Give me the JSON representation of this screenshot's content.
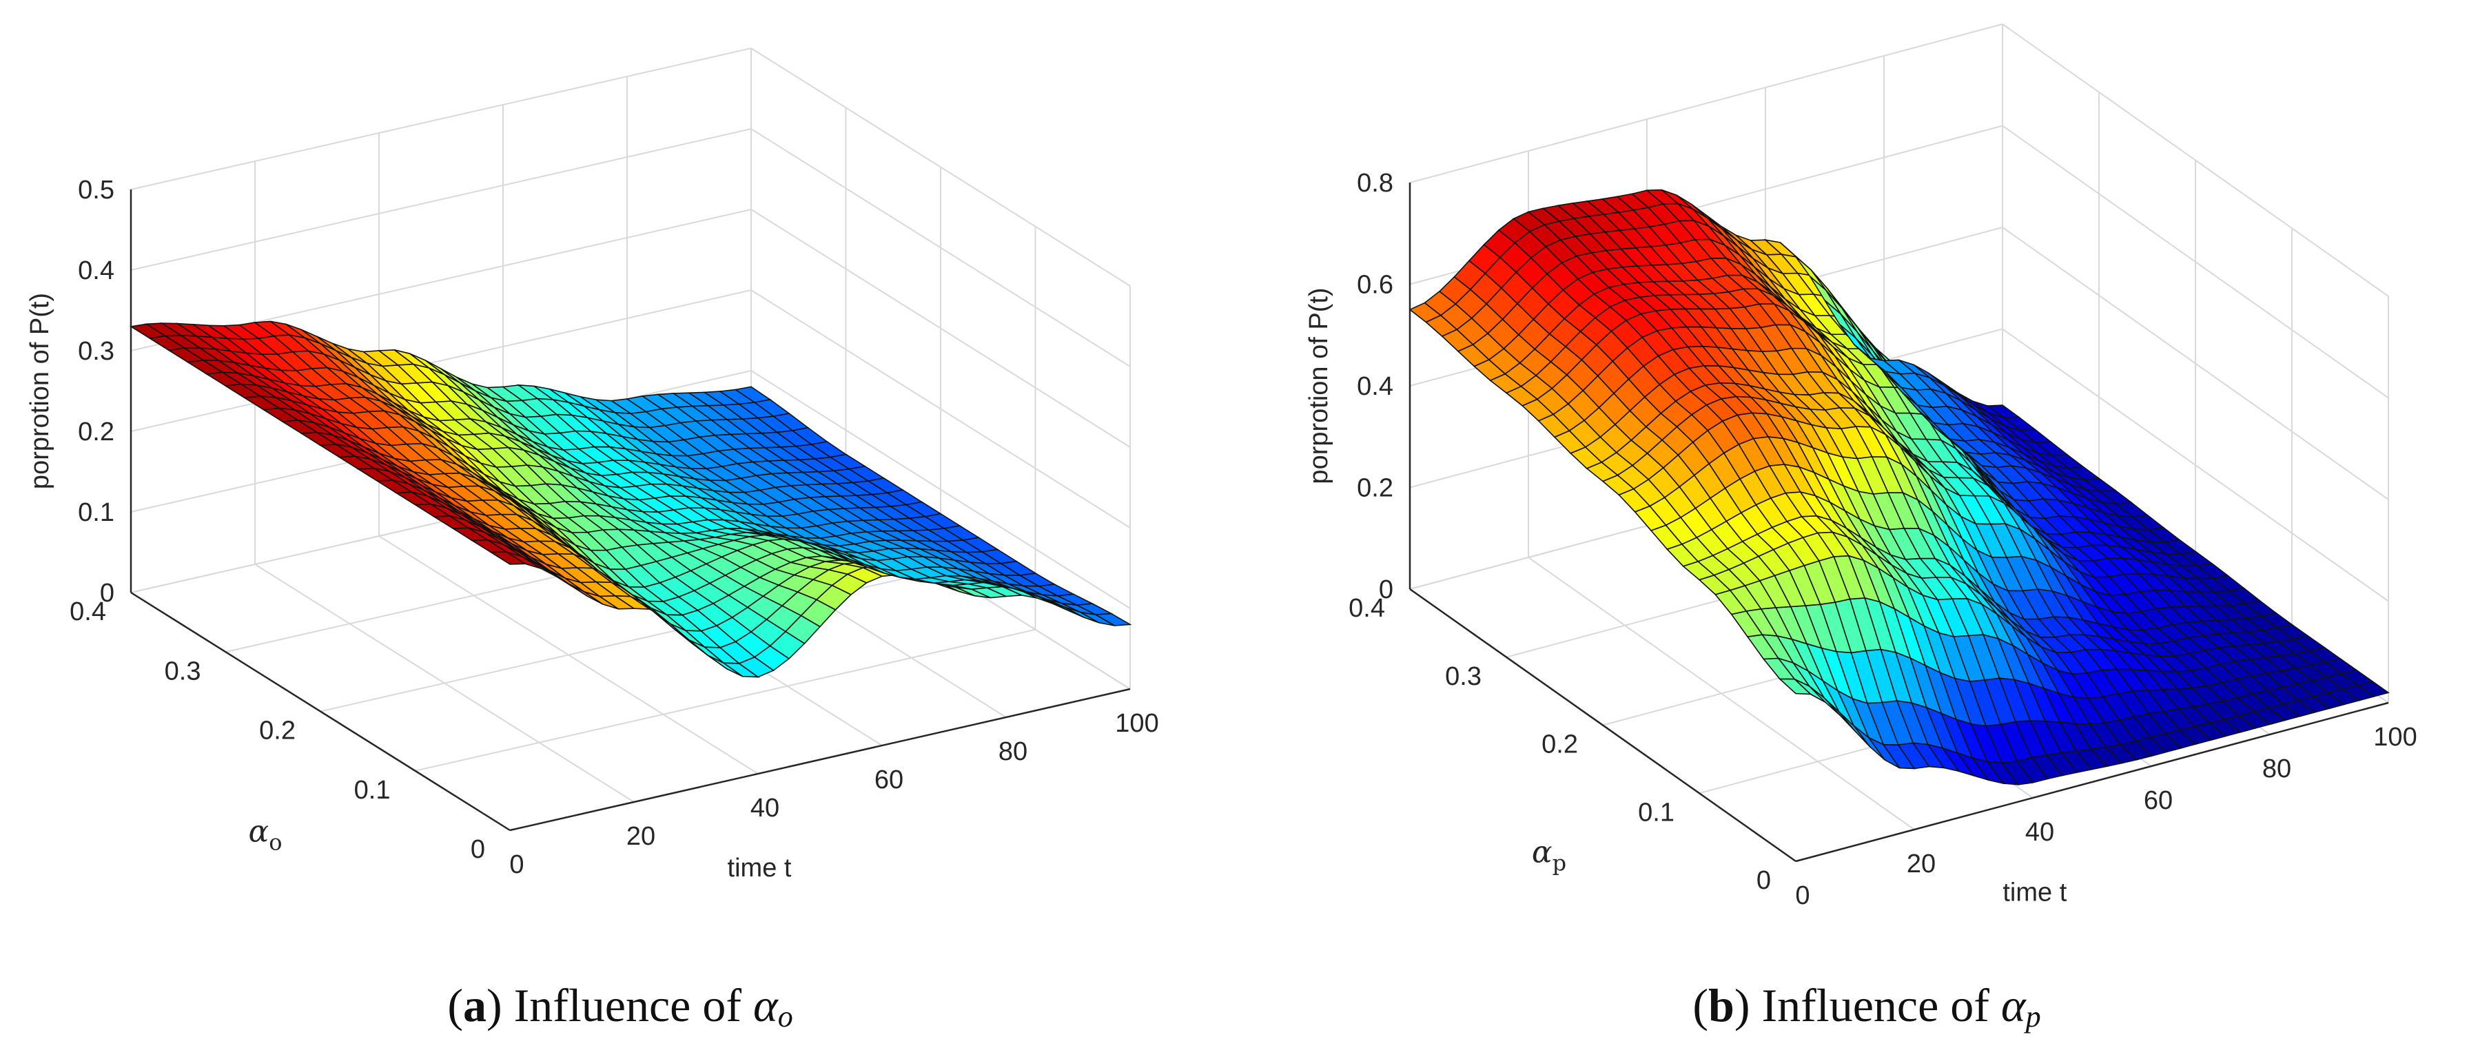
{
  "chart_data": [
    {
      "type": "surface3d",
      "panel": "a",
      "caption": {
        "prefix": "(",
        "letter": "a",
        "suffix": ") Influence of ",
        "symbol": "α",
        "subscript": "o"
      },
      "zlabel": "porprotion of P(t)",
      "xlabel": "time t",
      "ylabel": {
        "symbol": "α",
        "subscript": "o"
      },
      "xlim": [
        0,
        100
      ],
      "ylim": [
        0,
        0.4
      ],
      "zlim": [
        0,
        0.5
      ],
      "xticks": [
        "0",
        "20",
        "40",
        "60",
        "80",
        "100"
      ],
      "yticks": [
        "0",
        "0.1",
        "0.2",
        "0.3",
        "0.4"
      ],
      "zticks": [
        "0",
        "0.1",
        "0.2",
        "0.3",
        "0.4",
        "0.5"
      ],
      "grid": true,
      "colormap": "jet",
      "surface_description": "P(t) starts ~0.33 at t=0 for all alpha_o; for high alpha_o it decays to ~0.08 by t=100, for low alpha_o it dips near t=40 then rises to ~0.21 near t=65 before decaying",
      "sample_values": {
        "t": [
          0,
          20,
          40,
          60,
          80,
          100
        ],
        "alpha": [
          0,
          0.1,
          0.2,
          0.3,
          0.4
        ],
        "P": [
          [
            0.33,
            0.24,
            0.12,
            0.21,
            0.15,
            0.08
          ],
          [
            0.33,
            0.25,
            0.14,
            0.17,
            0.11,
            0.07
          ],
          [
            0.33,
            0.26,
            0.17,
            0.13,
            0.09,
            0.07
          ],
          [
            0.33,
            0.28,
            0.2,
            0.13,
            0.09,
            0.07
          ],
          [
            0.33,
            0.3,
            0.23,
            0.15,
            0.1,
            0.08
          ]
        ]
      }
    },
    {
      "type": "surface3d",
      "panel": "b",
      "caption": {
        "prefix": "(",
        "letter": "b",
        "suffix": ") Influence of ",
        "symbol": "α",
        "subscript": "p"
      },
      "zlabel": "porprotion of P(t)",
      "xlabel": "time t",
      "ylabel": {
        "symbol": "α",
        "subscript": "p"
      },
      "xlim": [
        0,
        100
      ],
      "ylim": [
        0,
        0.4
      ],
      "zlim": [
        0,
        0.8
      ],
      "xticks": [
        "0",
        "20",
        "40",
        "60",
        "80",
        "100"
      ],
      "yticks": [
        "0",
        "0.1",
        "0.2",
        "0.3",
        "0.4"
      ],
      "zticks": [
        "0",
        "0.2",
        "0.4",
        "0.6",
        "0.8"
      ],
      "grid": true,
      "colormap": "jet",
      "surface_description": "P(t) starts ~0.35 (low alpha_p) to ~0.55 (high alpha_p) at t=0, peaks ~0.68 around t=25 for high alpha_p, and decays toward ~0.02 by t=100",
      "sample_values": {
        "t": [
          0,
          20,
          40,
          60,
          80,
          100
        ],
        "alpha": [
          0,
          0.1,
          0.2,
          0.3,
          0.4
        ],
        "P": [
          [
            0.33,
            0.12,
            0.03,
            0.02,
            0.02,
            0.02
          ],
          [
            0.42,
            0.45,
            0.3,
            0.12,
            0.05,
            0.02
          ],
          [
            0.48,
            0.58,
            0.5,
            0.3,
            0.1,
            0.03
          ],
          [
            0.52,
            0.64,
            0.6,
            0.42,
            0.15,
            0.04
          ],
          [
            0.55,
            0.68,
            0.66,
            0.5,
            0.2,
            0.05
          ]
        ]
      }
    }
  ]
}
